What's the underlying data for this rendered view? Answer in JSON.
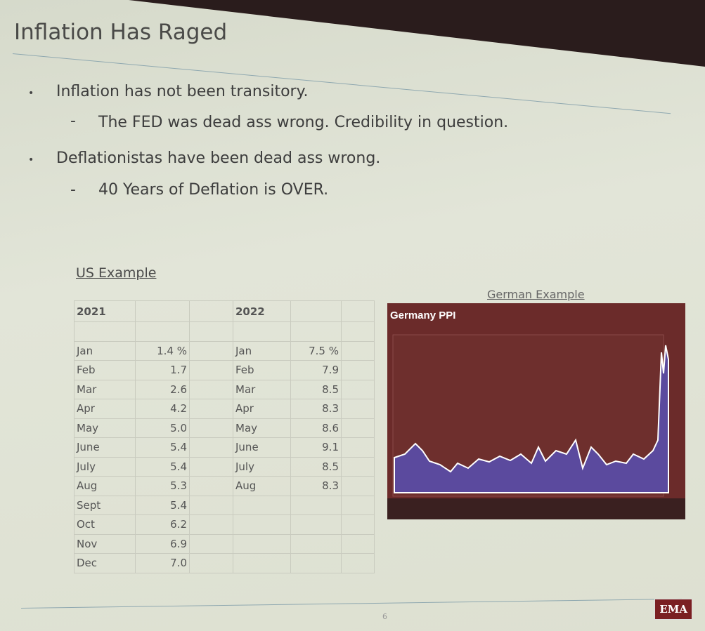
{
  "title": "Inflation Has Raged",
  "bullets": [
    {
      "text": "Inflation has not been transitory.",
      "sub": [
        "The FED was dead ass wrong.  Credibility in question."
      ]
    },
    {
      "text": "Deflationistas have been dead ass wrong.",
      "sub": [
        "40 Years of Deflation is OVER."
      ]
    }
  ],
  "us_example": {
    "label": "US Example",
    "table": {
      "header": [
        "2021",
        "2022"
      ],
      "rows": [
        [
          "Jan",
          "1.4 %",
          "Jan",
          "7.5 %"
        ],
        [
          "Feb",
          "1.7",
          "Feb",
          "7.9"
        ],
        [
          "Mar",
          "2.6",
          "Mar",
          "8.5"
        ],
        [
          "Apr",
          "4.2",
          "Apr",
          "8.3"
        ],
        [
          "May",
          "5.0",
          "May",
          "8.6"
        ],
        [
          "June",
          "5.4",
          "June",
          "9.1"
        ],
        [
          "July",
          "5.4",
          "July",
          "8.5"
        ],
        [
          "Aug",
          "5.3",
          "Aug",
          "8.3"
        ],
        [
          "Sept",
          "5.4"
        ],
        [
          "Oct",
          "6.2"
        ],
        [
          "Nov",
          "6.9"
        ],
        [
          "Dec",
          "7.0"
        ]
      ]
    }
  },
  "german_example": {
    "label": "German Example",
    "chart_title": "Germany PPI"
  },
  "page_number": "6",
  "logo": "EMA"
}
